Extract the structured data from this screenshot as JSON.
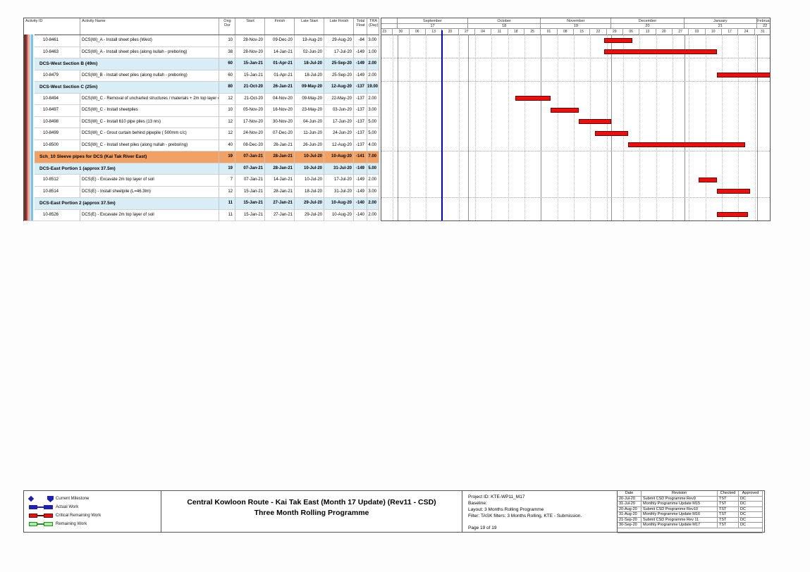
{
  "table": {
    "headers": [
      "Activity ID",
      "Activity Name",
      "Orig Dur",
      "Start",
      "Finish",
      "Late Start",
      "Late Finish",
      "Total Float",
      "TRA (Day)"
    ],
    "rows": [
      {
        "type": "activity",
        "id": "10-8461",
        "name": "DCS(W)_A - Install sheet piles (West)",
        "dur": "10",
        "start": "28-Nov-20",
        "finish": "09-Dec-20",
        "late_start": "19-Aug-20",
        "late_finish": "29-Aug-20",
        "float": "-84",
        "tra": "3.00"
      },
      {
        "type": "activity",
        "id": "10-8463",
        "name": "DCS(W)_A - Install sheet piles (along nullah - preboring)",
        "dur": "38",
        "start": "28-Nov-20",
        "finish": "14-Jan-21",
        "late_start": "02-Jun-20",
        "late_finish": "17-Jul-20",
        "float": "-149",
        "tra": "1.00"
      },
      {
        "type": "section",
        "id": "",
        "name": "DCS-West Section B (49m)",
        "dur": "60",
        "start": "15-Jan-21",
        "finish": "01-Apr-21",
        "late_start": "18-Jul-20",
        "late_finish": "25-Sep-20",
        "float": "-149",
        "tra": "2.00"
      },
      {
        "type": "activity",
        "id": "10-8479",
        "name": "DCS(W)_B - Install sheet piles (along nullah - preboring)",
        "dur": "60",
        "start": "15-Jan-21",
        "finish": "01-Apr-21",
        "late_start": "18-Jul-20",
        "late_finish": "25-Sep-20",
        "float": "-149",
        "tra": "2.00"
      },
      {
        "type": "section",
        "id": "",
        "name": "DCS-West Section C (25m)",
        "dur": "80",
        "start": "21-Oct-20",
        "finish": "26-Jan-21",
        "late_start": "09-May-20",
        "late_finish": "12-Aug-20",
        "float": "-137",
        "tra": "19.00"
      },
      {
        "type": "activity",
        "id": "10-8494",
        "name": "DCS(W)_C - Removal of uncharted structures / materials + 2m top layer of soil",
        "dur": "12",
        "start": "21-Oct-20",
        "finish": "04-Nov-20",
        "late_start": "09-May-20",
        "late_finish": "22-May-20",
        "float": "-137",
        "tra": "2.00"
      },
      {
        "type": "activity",
        "id": "10-8497",
        "name": "DCS(W)_C - Install sheetpiles",
        "dur": "10",
        "start": "05-Nov-20",
        "finish": "16-Nov-20",
        "late_start": "23-May-20",
        "late_finish": "03-Jun-20",
        "float": "-137",
        "tra": "3.00"
      },
      {
        "type": "activity",
        "id": "10-8498",
        "name": "DCS(W)_C - Install 610 pipe piles (13 nrs)",
        "dur": "12",
        "start": "17-Nov-20",
        "finish": "30-Nov-20",
        "late_start": "04-Jun-20",
        "late_finish": "17-Jun-20",
        "float": "-137",
        "tra": "5.00"
      },
      {
        "type": "activity",
        "id": "10-8499",
        "name": "DCS(W)_C - Grout curtain behind pipepile ( 500mm c/c)",
        "dur": "12",
        "start": "24-Nov-20",
        "finish": "07-Dec-20",
        "late_start": "11-Jun-20",
        "late_finish": "24-Jun-20",
        "float": "-137",
        "tra": "5.00"
      },
      {
        "type": "activity",
        "id": "10-8500",
        "name": "DCS(W)_C - Install sheet piles (along nullah - preboring)",
        "dur": "40",
        "start": "08-Dec-20",
        "finish": "26-Jan-21",
        "late_start": "26-Jun-20",
        "late_finish": "12-Aug-20",
        "float": "-137",
        "tra": "4.00"
      },
      {
        "type": "wbs",
        "id": "",
        "name": "Sch_10 Sleeve pipes for DCS (Kai Tak River East)",
        "dur": "19",
        "start": "07-Jan-21",
        "finish": "28-Jan-21",
        "late_start": "10-Jul-20",
        "late_finish": "10-Aug-20",
        "float": "-141",
        "tra": "7.00"
      },
      {
        "type": "section",
        "id": "",
        "name": "DCS-East Portion 1 (approx 37.5m)",
        "dur": "19",
        "start": "07-Jan-21",
        "finish": "28-Jan-21",
        "late_start": "10-Jul-20",
        "late_finish": "31-Jul-20",
        "float": "-149",
        "tra": "5.00"
      },
      {
        "type": "activity",
        "id": "10-8512",
        "name": "DCS(E) - Excavate 2m top layer of soil",
        "dur": "7",
        "start": "07-Jan-21",
        "finish": "14-Jan-21",
        "late_start": "10-Jul-20",
        "late_finish": "17-Jul-20",
        "float": "-149",
        "tra": "2.00"
      },
      {
        "type": "activity",
        "id": "10-8514",
        "name": "DCS(E) - Install sheetpile (L=46.3lm)",
        "dur": "12",
        "start": "15-Jan-21",
        "finish": "28-Jan-21",
        "late_start": "18-Jul-20",
        "late_finish": "31-Jul-20",
        "float": "-149",
        "tra": "3.00"
      },
      {
        "type": "section",
        "id": "",
        "name": "DCS-East Portion 2 (approx 37.5m)",
        "dur": "11",
        "start": "15-Jan-21",
        "finish": "27-Jan-21",
        "late_start": "29-Jul-20",
        "late_finish": "10-Aug-20",
        "float": "-140",
        "tra": "2.00"
      },
      {
        "type": "activity",
        "id": "10-8526",
        "name": "DCS(E) - Excavate 2m top layer of soil",
        "dur": "11",
        "start": "15-Jan-21",
        "finish": "27-Jan-21",
        "late_start": "29-Jul-20",
        "late_finish": "10-Aug-20",
        "float": "-140",
        "tra": "2.00"
      }
    ]
  },
  "chart_data": {
    "type": "gantt",
    "timeline": {
      "start": "23-Aug-20",
      "end": "08-Feb-21",
      "week_tick_labels": [
        "23",
        "30",
        "06",
        "13",
        "20",
        "27",
        "04",
        "11",
        "18",
        "25",
        "01",
        "08",
        "15",
        "22",
        "29",
        "06",
        "13",
        "20",
        "27",
        "03",
        "10",
        "17",
        "24",
        "31"
      ],
      "months": [
        {
          "name": "",
          "num": "",
          "from": "23-Aug-20"
        },
        {
          "name": "September",
          "num": "17",
          "from": "01-Sep-20"
        },
        {
          "name": "October",
          "num": "18",
          "from": "01-Oct-20"
        },
        {
          "name": "November",
          "num": "19",
          "from": "01-Nov-20"
        },
        {
          "name": "December",
          "num": "20",
          "from": "01-Dec-20"
        },
        {
          "name": "January",
          "num": "21",
          "from": "01-Jan-21"
        },
        {
          "name": "February",
          "num": "22",
          "from": "01-Feb-21"
        }
      ]
    },
    "data_date": "20-Sep-20",
    "bar_color": "#e51212",
    "data_date_color": "#0000cc",
    "separators_before_rows": [
      2,
      4,
      10,
      14
    ],
    "bars": [
      {
        "row": 0,
        "id": "10-8461",
        "start": "28-Nov-20",
        "finish": "09-Dec-20",
        "kind": "critical"
      },
      {
        "row": 1,
        "id": "10-8463",
        "start": "28-Nov-20",
        "finish": "14-Jan-21",
        "kind": "critical"
      },
      {
        "row": 3,
        "id": "10-8479",
        "start": "15-Jan-21",
        "finish": "01-Apr-21",
        "kind": "critical"
      },
      {
        "row": 5,
        "id": "10-8494",
        "start": "21-Oct-20",
        "finish": "04-Nov-20",
        "kind": "critical"
      },
      {
        "row": 6,
        "id": "10-8497",
        "start": "05-Nov-20",
        "finish": "16-Nov-20",
        "kind": "critical"
      },
      {
        "row": 7,
        "id": "10-8498",
        "start": "17-Nov-20",
        "finish": "30-Nov-20",
        "kind": "critical"
      },
      {
        "row": 8,
        "id": "10-8499",
        "start": "24-Nov-20",
        "finish": "07-Dec-20",
        "kind": "critical"
      },
      {
        "row": 9,
        "id": "10-8500",
        "start": "08-Dec-20",
        "finish": "26-Jan-21",
        "kind": "critical"
      },
      {
        "row": 12,
        "id": "10-8512",
        "start": "07-Jan-21",
        "finish": "14-Jan-21",
        "kind": "critical"
      },
      {
        "row": 13,
        "id": "10-8514",
        "start": "15-Jan-21",
        "finish": "28-Jan-21",
        "kind": "critical"
      },
      {
        "row": 15,
        "id": "10-8526",
        "start": "15-Jan-21",
        "finish": "27-Jan-21",
        "kind": "critical"
      }
    ]
  },
  "left_stripe_colors": [
    "#5f3a33",
    "#c0392b",
    "#e8a899",
    "#c7e0ef",
    "#74c6e4",
    "#ffffff"
  ],
  "legend": [
    {
      "symbol": "milestone",
      "color": "#2020b0",
      "label": "Current Milestone"
    },
    {
      "symbol": "bar",
      "color": "#2020b0",
      "fill": "#2020b0",
      "label": "Actual Work"
    },
    {
      "symbol": "bar",
      "color": "#6e0000",
      "fill": "#e51212",
      "label": "Critical Remaining Work"
    },
    {
      "symbol": "bar",
      "color": "#1f8a1f",
      "fill": "#a8eca8",
      "label": "Remaining Work"
    }
  ],
  "title_block": {
    "line1": "Central Kowloon Route - Kai Tak East (Month 17 Update) (Rev11 - CSD)",
    "line2": "Three Month Rolling Programme"
  },
  "info": {
    "project_id": "Project ID: KTE-WP11_M17",
    "baseline": "Baseline:",
    "layout": "Layout: 3 Months Rolling Programme",
    "filter": "Filter: TASK filters: 3 Months Rolling, KTE - Submission.",
    "page": "Page 19 of 19"
  },
  "revisions": {
    "headers": [
      "Date",
      "Revision",
      "Checked",
      "Approved"
    ],
    "rows": [
      [
        "20-Jul-20",
        "Submit CSD Programme Rev9",
        "TST",
        "DC"
      ],
      [
        "31-Jul-20",
        "Monthly Programme Update M15",
        "TST",
        "DC"
      ],
      [
        "20-Aug-20",
        "Submit CSD Programme Rev10",
        "TST",
        "DC"
      ],
      [
        "31-Aug-20",
        "Monthly Programme Update M16",
        "TST",
        "DC"
      ],
      [
        "21-Sep-20",
        "Submit CSD Programme Rev 11",
        "TST",
        "DC"
      ],
      [
        "30-Sep-20",
        "Monthly Programme Update M17",
        "TST",
        "DC"
      ]
    ]
  }
}
